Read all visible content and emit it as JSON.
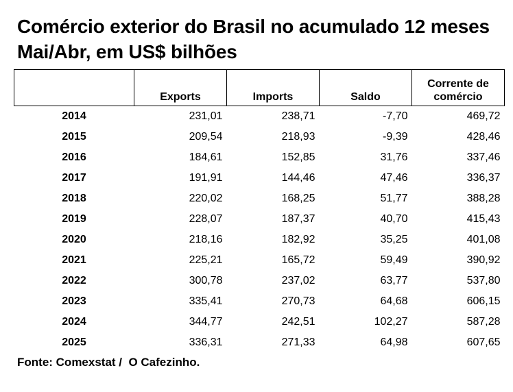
{
  "chart_data": {
    "type": "table",
    "title": "Comércio exterior do Brasil no acumulado 12 meses",
    "subtitle": "Mai/Abr, em US$ bilhões",
    "columns": [
      "",
      "Exports",
      "Imports",
      "Saldo",
      "Corrente de comércio"
    ],
    "rows": [
      {
        "year": "2014",
        "exports": "231,01",
        "imports": "238,71",
        "saldo": "-7,70",
        "corrente": "469,72"
      },
      {
        "year": "2015",
        "exports": "209,54",
        "imports": "218,93",
        "saldo": "-9,39",
        "corrente": "428,46"
      },
      {
        "year": "2016",
        "exports": "184,61",
        "imports": "152,85",
        "saldo": "31,76",
        "corrente": "337,46"
      },
      {
        "year": "2017",
        "exports": "191,91",
        "imports": "144,46",
        "saldo": "47,46",
        "corrente": "336,37"
      },
      {
        "year": "2018",
        "exports": "220,02",
        "imports": "168,25",
        "saldo": "51,77",
        "corrente": "388,28"
      },
      {
        "year": "2019",
        "exports": "228,07",
        "imports": "187,37",
        "saldo": "40,70",
        "corrente": "415,43"
      },
      {
        "year": "2020",
        "exports": "218,16",
        "imports": "182,92",
        "saldo": "35,25",
        "corrente": "401,08"
      },
      {
        "year": "2021",
        "exports": "225,21",
        "imports": "165,72",
        "saldo": "59,49",
        "corrente": "390,92"
      },
      {
        "year": "2022",
        "exports": "300,78",
        "imports": "237,02",
        "saldo": "63,77",
        "corrente": "537,80"
      },
      {
        "year": "2023",
        "exports": "335,41",
        "imports": "270,73",
        "saldo": "64,68",
        "corrente": "606,15"
      },
      {
        "year": "2024",
        "exports": "344,77",
        "imports": "242,51",
        "saldo": "102,27",
        "corrente": "587,28"
      },
      {
        "year": "2025",
        "exports": "336,31",
        "imports": "271,33",
        "saldo": "64,98",
        "corrente": "607,65"
      }
    ],
    "source": "Fonte: Comexstat /  O Cafezinho."
  }
}
